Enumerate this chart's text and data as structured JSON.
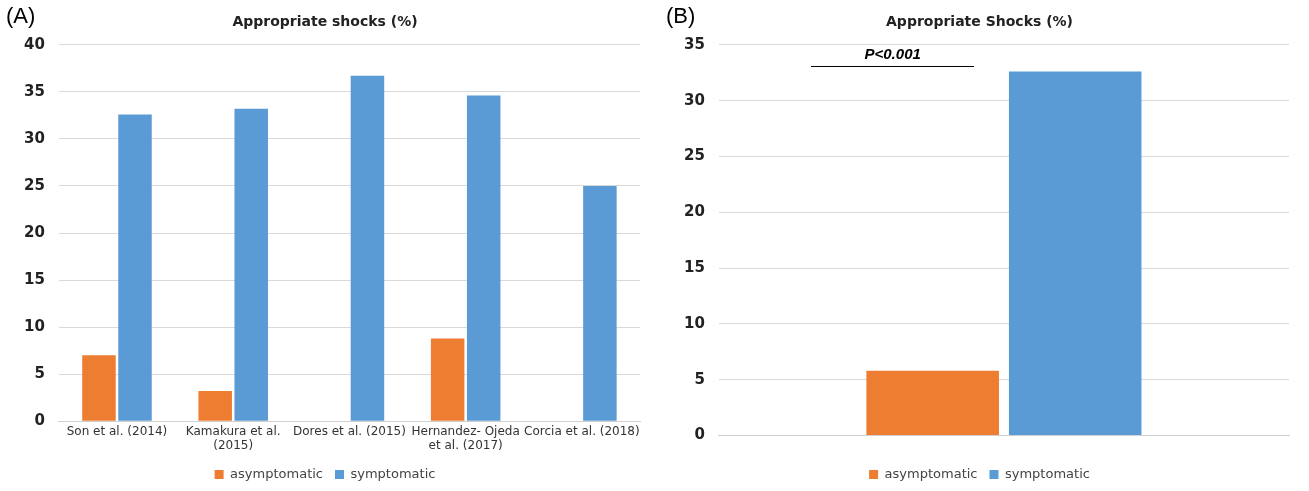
{
  "chart_data": [
    {
      "type": "bar",
      "title": "Appropriate shocks (%)",
      "categories": [
        "Son et al. (2014)",
        "Kamakura et al. (2015)",
        "Dores et al. (2015)",
        "Hernandez- Ojeda et al. (2017)",
        "Corcia et al. (2018)"
      ],
      "series": [
        {
          "name": "asymptomatic",
          "color": "#ed7d31",
          "values": [
            7.0,
            3.2,
            0,
            8.8,
            0
          ]
        },
        {
          "name": "symptomatic",
          "color": "#5b9bd5",
          "values": [
            32.6,
            33.2,
            36.7,
            34.6,
            25.0
          ]
        }
      ],
      "ylim": [
        0,
        40
      ],
      "yticks": [
        0,
        5,
        10,
        15,
        20,
        25,
        30,
        35,
        40
      ],
      "grid": "y",
      "legend": "bottom",
      "annotations": [
        "(A)"
      ]
    },
    {
      "type": "bar",
      "title": "Appropriate Shocks (%)",
      "categories": [
        null
      ],
      "series": [
        {
          "name": "asymptomatic",
          "color": "#ed7d31",
          "values": [
            5.8
          ]
        },
        {
          "name": "symptomatic",
          "color": "#5b9bd5",
          "values": [
            32.6
          ]
        }
      ],
      "ylim": [
        0,
        35
      ],
      "yticks": [
        0,
        5,
        10,
        15,
        20,
        25,
        30,
        35
      ],
      "grid": "y",
      "legend": "bottom",
      "annotations": [
        "(B)",
        "P<0.001"
      ]
    }
  ]
}
